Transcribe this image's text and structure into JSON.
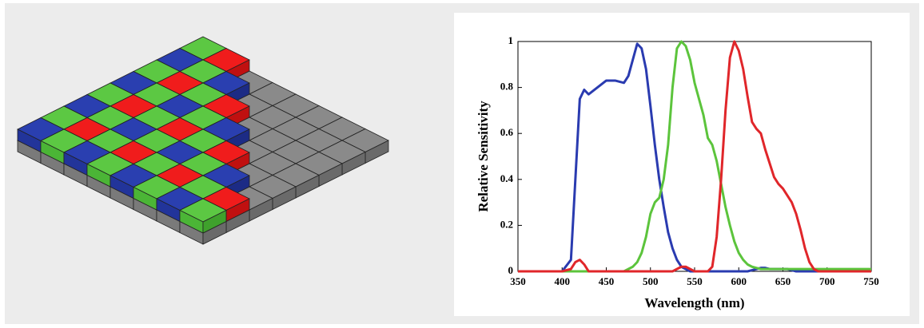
{
  "chart_data": {
    "type": "line",
    "xlabel": "Wavelength (nm)",
    "ylabel": "Relative Sensitivity",
    "x": [
      350,
      400,
      410,
      415,
      420,
      425,
      430,
      440,
      450,
      460,
      470,
      475,
      480,
      485,
      490,
      495,
      500,
      505,
      510,
      515,
      520,
      525,
      530,
      535,
      540,
      545,
      550,
      560,
      565,
      570,
      575,
      580,
      585,
      590,
      595,
      600,
      605,
      610,
      615,
      620,
      625,
      630,
      635,
      640,
      645,
      650,
      655,
      660,
      665,
      670,
      675,
      680,
      685,
      690,
      700,
      750
    ],
    "series": [
      {
        "color": "#2a3bb0",
        "values": [
          0,
          0,
          0.05,
          0.4,
          0.75,
          0.79,
          0.77,
          0.8,
          0.83,
          0.83,
          0.82,
          0.85,
          0.92,
          0.99,
          0.97,
          0.88,
          0.72,
          0.55,
          0.4,
          0.28,
          0.17,
          0.1,
          0.05,
          0.02,
          0.01,
          0,
          0,
          0,
          0,
          0,
          0,
          0,
          0,
          0,
          0,
          0,
          0,
          0,
          0.005,
          0.01,
          0.015,
          0.015,
          0.01,
          0.01,
          0.01,
          0.01,
          0.01,
          0.005,
          0,
          0,
          0,
          0,
          0,
          0,
          0,
          0
        ]
      },
      {
        "color": "#5cc43c",
        "values": [
          0,
          0,
          0,
          0,
          0,
          0,
          0,
          0,
          0,
          0,
          0,
          0.01,
          0.02,
          0.04,
          0.08,
          0.15,
          0.25,
          0.3,
          0.32,
          0.4,
          0.55,
          0.8,
          0.97,
          1.0,
          0.98,
          0.92,
          0.82,
          0.68,
          0.58,
          0.55,
          0.48,
          0.38,
          0.28,
          0.2,
          0.13,
          0.08,
          0.05,
          0.03,
          0.02,
          0.015,
          0.01,
          0.01,
          0.01,
          0.01,
          0.01,
          0.01,
          0.01,
          0.01,
          0.01,
          0.01,
          0.01,
          0.01,
          0.01,
          0.01,
          0.01,
          0.01
        ]
      },
      {
        "color": "#e0262a",
        "values": [
          0,
          0,
          0.01,
          0.04,
          0.05,
          0.03,
          0,
          0,
          0,
          0,
          0,
          0,
          0,
          0,
          0,
          0,
          0,
          0,
          0,
          0,
          0,
          0,
          0.01,
          0.02,
          0.02,
          0.01,
          0,
          0,
          0,
          0.02,
          0.15,
          0.4,
          0.7,
          0.93,
          1.0,
          0.96,
          0.88,
          0.76,
          0.65,
          0.62,
          0.6,
          0.53,
          0.47,
          0.41,
          0.38,
          0.36,
          0.33,
          0.3,
          0.25,
          0.18,
          0.1,
          0.04,
          0.01,
          0,
          0,
          0
        ]
      }
    ],
    "xlim": [
      350,
      750
    ],
    "ylim": [
      0,
      1
    ],
    "xticks": [
      350,
      400,
      450,
      500,
      550,
      600,
      650,
      700,
      750
    ],
    "yticks": [
      0,
      0.2,
      0.4,
      0.6,
      0.8,
      1
    ]
  }
}
